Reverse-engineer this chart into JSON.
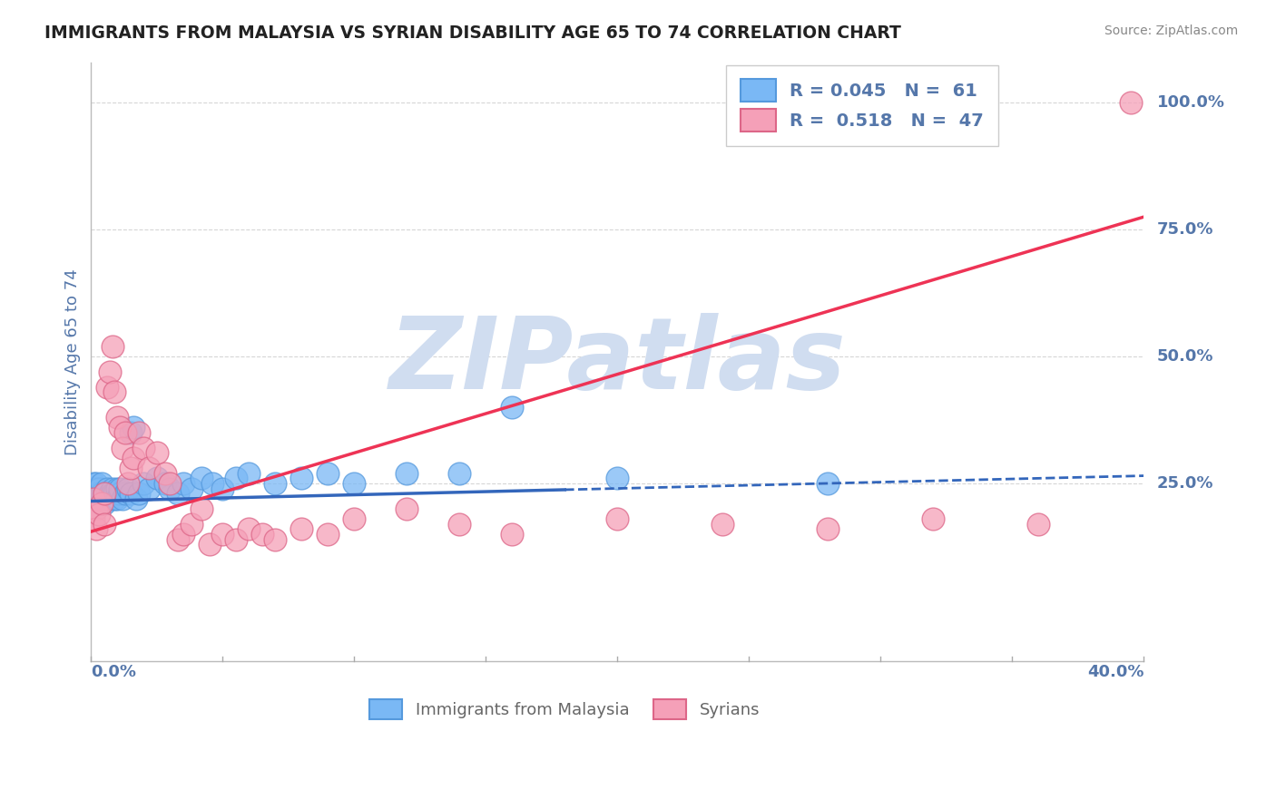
{
  "title": "IMMIGRANTS FROM MALAYSIA VS SYRIAN DISABILITY AGE 65 TO 74 CORRELATION CHART",
  "source": "Source: ZipAtlas.com",
  "ylabel": "Disability Age 65 to 74",
  "xlim": [
    0.0,
    0.4
  ],
  "ylim": [
    -0.1,
    1.08
  ],
  "watermark": "ZIPatlas",
  "watermark_color": "#d0ddf0",
  "blue_color": "#7ab8f5",
  "pink_color": "#f5a0b8",
  "blue_edge_color": "#5599dd",
  "pink_edge_color": "#dd6688",
  "blue_line_color": "#3366bb",
  "pink_line_color": "#ee3355",
  "axis_label_color": "#5577aa",
  "grid_color": "#cccccc",
  "title_color": "#222222",
  "source_color": "#888888",
  "legend1_label": "R = 0.045   N =  61",
  "legend2_label": "R =  0.518   N =  47",
  "bottom_legend1": "Immigrants from Malaysia",
  "bottom_legend2": "Syrians",
  "blue_line_y0": 0.215,
  "blue_line_y1": 0.265,
  "pink_line_y0": 0.155,
  "pink_line_y1": 0.775,
  "blue_x": [
    0.001,
    0.001,
    0.001,
    0.001,
    0.001,
    0.001,
    0.002,
    0.002,
    0.002,
    0.002,
    0.003,
    0.003,
    0.003,
    0.004,
    0.004,
    0.004,
    0.005,
    0.005,
    0.005,
    0.006,
    0.006,
    0.007,
    0.007,
    0.008,
    0.008,
    0.009,
    0.009,
    0.01,
    0.01,
    0.011,
    0.011,
    0.012,
    0.013,
    0.014,
    0.015,
    0.015,
    0.016,
    0.017,
    0.018,
    0.02,
    0.022,
    0.025,
    0.028,
    0.03,
    0.033,
    0.035,
    0.038,
    0.042,
    0.046,
    0.05,
    0.055,
    0.06,
    0.07,
    0.08,
    0.09,
    0.1,
    0.12,
    0.14,
    0.16,
    0.2,
    0.28
  ],
  "blue_y": [
    0.22,
    0.23,
    0.24,
    0.25,
    0.21,
    0.2,
    0.23,
    0.22,
    0.24,
    0.25,
    0.21,
    0.23,
    0.24,
    0.22,
    0.23,
    0.25,
    0.22,
    0.21,
    0.23,
    0.24,
    0.22,
    0.23,
    0.22,
    0.24,
    0.23,
    0.22,
    0.23,
    0.24,
    0.22,
    0.23,
    0.24,
    0.22,
    0.23,
    0.24,
    0.23,
    0.35,
    0.36,
    0.22,
    0.23,
    0.25,
    0.24,
    0.26,
    0.25,
    0.24,
    0.23,
    0.25,
    0.24,
    0.26,
    0.25,
    0.24,
    0.26,
    0.27,
    0.25,
    0.26,
    0.27,
    0.25,
    0.27,
    0.27,
    0.4,
    0.26,
    0.25
  ],
  "pink_x": [
    0.001,
    0.001,
    0.002,
    0.002,
    0.003,
    0.004,
    0.005,
    0.005,
    0.006,
    0.007,
    0.008,
    0.009,
    0.01,
    0.011,
    0.012,
    0.013,
    0.014,
    0.015,
    0.016,
    0.018,
    0.02,
    0.022,
    0.025,
    0.028,
    0.03,
    0.033,
    0.035,
    0.038,
    0.042,
    0.045,
    0.05,
    0.055,
    0.06,
    0.065,
    0.07,
    0.08,
    0.09,
    0.1,
    0.12,
    0.14,
    0.16,
    0.2,
    0.24,
    0.28,
    0.32,
    0.36,
    0.395
  ],
  "pink_y": [
    0.22,
    0.18,
    0.2,
    0.16,
    0.19,
    0.21,
    0.23,
    0.17,
    0.44,
    0.47,
    0.52,
    0.43,
    0.38,
    0.36,
    0.32,
    0.35,
    0.25,
    0.28,
    0.3,
    0.35,
    0.32,
    0.28,
    0.31,
    0.27,
    0.25,
    0.14,
    0.15,
    0.17,
    0.2,
    0.13,
    0.15,
    0.14,
    0.16,
    0.15,
    0.14,
    0.16,
    0.15,
    0.18,
    0.2,
    0.17,
    0.15,
    0.18,
    0.17,
    0.16,
    0.18,
    0.17,
    1.0
  ]
}
